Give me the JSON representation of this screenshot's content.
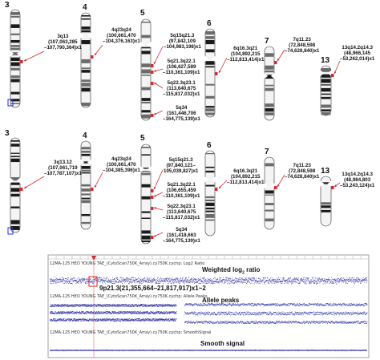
{
  "panel_a": {
    "chromosomes": [
      {
        "number": "3",
        "label_lines": [
          "3q13",
          "(107,063,285",
          "–107,790,364)x1"
        ]
      },
      {
        "number": "4",
        "label_lines": [
          "4q23q24",
          "(100,661,470",
          "–104,376,163)x1"
        ]
      },
      {
        "number": "5",
        "label_lines": [
          "5q15q21.3",
          "(97,842,109",
          "–104,983,198)x1"
        ]
      },
      {
        "number": "5b",
        "label_lines": [
          "5q21.3q22.1",
          "(106,627,589",
          "–110,361,109)x1"
        ]
      },
      {
        "number": "5c",
        "label_lines": [
          "5q22.3q23.1",
          "(113,640,675",
          "–115,817,032)x1"
        ]
      },
      {
        "number": "5d",
        "label_lines": [
          "5q34",
          "(161,446,706",
          "–164,775,139)x1"
        ]
      },
      {
        "number": "6",
        "label_lines": [
          "6q16.3q21",
          "(104,892,215",
          "–112,813,414)x1"
        ]
      },
      {
        "number": "7",
        "label_lines": [
          "7q11.23",
          "(72,848,598",
          "–74,628,840)x1"
        ]
      },
      {
        "number": "13",
        "label_lines": [
          "13q14.2q14.3",
          "(48,966,145",
          "–53,262,014)x1"
        ]
      }
    ]
  },
  "panel_b": {
    "chromosomes": [
      {
        "number": "3",
        "label_lines": [
          "3q13.12",
          "(107,061,719",
          "–107,787,107)x1"
        ]
      },
      {
        "number": "4",
        "label_lines": [
          "4q23q24",
          "(100,661,470",
          "–104,385,396)x1"
        ]
      },
      {
        "number": "5",
        "label_lines": [
          "5q15q21.3",
          "(97,840,121–",
          "105,039,827)x1"
        ]
      },
      {
        "number": "5b",
        "label_lines": [
          "5q21.3q22.1",
          "(106,655,459",
          "–110,361,109)x1"
        ]
      },
      {
        "number": "5c",
        "label_lines": [
          "5q22.3q23.1",
          "(113,640,675",
          "–115,817,032)x1"
        ]
      },
      {
        "number": "5d",
        "label_lines": [
          "5q34",
          "(161,418,663",
          "–164,775,139)x1"
        ]
      },
      {
        "number": "6",
        "label_lines": [
          "6q16.3q21",
          "(104,892,215",
          "–112,813,414)x1"
        ]
      },
      {
        "number": "7",
        "label_lines": [
          "7q11.23",
          "(72,848,598",
          "–74,628,840)x1"
        ]
      },
      {
        "number": "13",
        "label_lines": [
          "13q14.2q14.3",
          "(48,984,803",
          "–53,243,124)x1"
        ]
      }
    ]
  },
  "chromosome_numbers": {
    "c3": "3",
    "c4": "4",
    "c5": "5",
    "c6": "6",
    "c7": "7",
    "c13": "13"
  },
  "panel_c": {
    "track_header_1": "12MA-125 HEO YOUNG TAE_(CytoScan750K_Array).cy750K.cychp: Log2 Ratio",
    "track_header_2": "12MA-125 HEO YOUNG TAE_(CytoScan750K_Array).cy750K.cychp: Allele Peaks",
    "track_header_3": "12MA-125 HEO YOUNG TAE_(CytoScan750K_Array).cy750K.cychp: SmoothSignal",
    "title_log2": "Weighted log",
    "title_log2_sub": "2",
    "title_log2_tail": " ratio",
    "title_allele": "Allele peaks",
    "title_smooth": "Smooth signal",
    "cnv_label": "9p21.3(21,355,664–21,817,917)x1~2",
    "colors": {
      "signal": "#3a3ea8",
      "cnv": "#d9262c",
      "frame": "#8a8a8a"
    }
  }
}
